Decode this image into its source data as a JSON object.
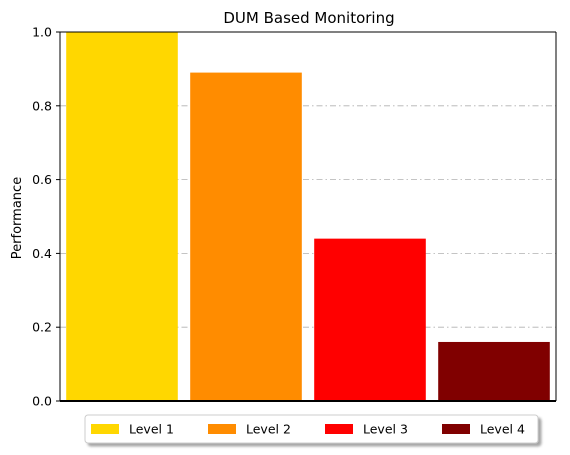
{
  "chart_data": {
    "type": "bar",
    "title": "DUM Based Monitoring",
    "xlabel": "",
    "ylabel": "Performance",
    "ylim": [
      0,
      1.0
    ],
    "yticks": [
      0.0,
      0.2,
      0.4,
      0.6,
      0.8,
      1.0
    ],
    "ytick_labels": [
      "0.0",
      "0.2",
      "0.4",
      "0.6",
      "0.8",
      "1.0"
    ],
    "grid": "horizontal dash-dot",
    "legend_position": "bottom-center",
    "series": [
      {
        "name": "Level 1",
        "value": 1.0,
        "color": "#FFD700"
      },
      {
        "name": "Level 2",
        "value": 0.89,
        "color": "#FF8C00"
      },
      {
        "name": "Level 3",
        "value": 0.44,
        "color": "#FF0000"
      },
      {
        "name": "Level 4",
        "value": 0.16,
        "color": "#800000"
      }
    ]
  }
}
